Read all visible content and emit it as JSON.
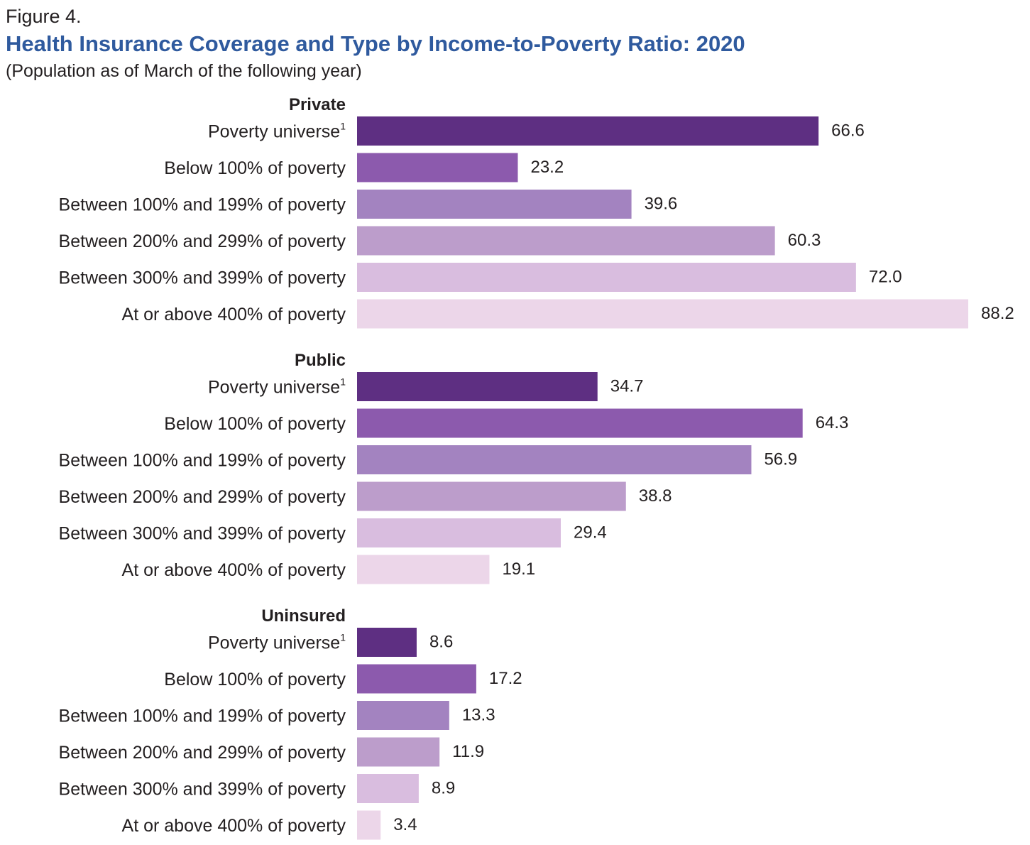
{
  "figure_label": "Figure 4.",
  "title": "Health Insurance Coverage and Type by Income-to-Poverty Ratio: 2020",
  "subtitle": "(Population as of March of the following year)",
  "footnote_marker": "1",
  "chart_data": {
    "type": "bar",
    "orientation": "horizontal",
    "grid": false,
    "legend": "none",
    "xlim": [
      0,
      88.2
    ],
    "categories": [
      "Poverty universe",
      "Below 100% of poverty",
      "Between 100% and 199% of poverty",
      "Between 200% and 299% of poverty",
      "Between 300% and 399% of poverty",
      "At or above 400% of poverty"
    ],
    "category_footnotes": [
      "1",
      "",
      "",
      "",
      "",
      ""
    ],
    "category_colors": [
      "#5e2f82",
      "#8c5aad",
      "#a383c0",
      "#bc9dcb",
      "#d9bddf",
      "#ecd6e9"
    ],
    "groups": [
      {
        "name": "Private",
        "values": [
          66.6,
          23.2,
          39.6,
          60.3,
          72.0,
          88.2
        ],
        "labels": [
          "66.6",
          "23.2",
          "39.6",
          "60.3",
          "72.0",
          "88.2"
        ]
      },
      {
        "name": "Public",
        "values": [
          34.7,
          64.3,
          56.9,
          38.8,
          29.4,
          19.1
        ],
        "labels": [
          "34.7",
          "64.3",
          "56.9",
          "38.8",
          "29.4",
          "19.1"
        ]
      },
      {
        "name": "Uninsured",
        "values": [
          8.6,
          17.2,
          13.3,
          11.9,
          8.9,
          3.4
        ],
        "labels": [
          "8.6",
          "17.2",
          "13.3",
          "11.9",
          "8.9",
          "3.4"
        ]
      }
    ]
  }
}
